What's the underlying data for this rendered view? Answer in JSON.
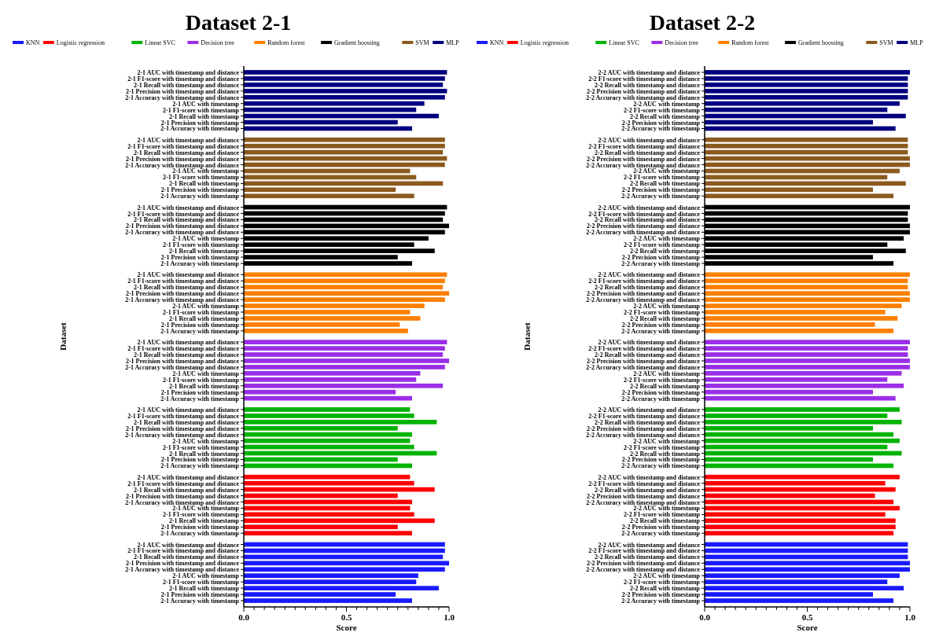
{
  "chart_data": [
    {
      "type": "bar",
      "orientation": "horizontal",
      "title": "Dataset 2-1",
      "xlabel": "Score",
      "ylabel": "Dataset",
      "legend": "top",
      "grid": false,
      "xlim": [
        0,
        1
      ],
      "xticks": [
        {
          "value": 0,
          "label": "0.0"
        },
        {
          "value": 0.05,
          "label": null
        },
        {
          "value": 0.1,
          "label": null
        },
        {
          "value": 0.15,
          "label": null
        },
        {
          "value": 0.2,
          "label": null
        },
        {
          "value": 0.25,
          "label": null
        },
        {
          "value": 0.3,
          "label": null
        },
        {
          "value": 0.35,
          "label": null
        },
        {
          "value": 0.4,
          "label": null
        },
        {
          "value": 0.45,
          "label": null
        },
        {
          "value": 0.5,
          "label": "0.5"
        },
        {
          "value": 0.55,
          "label": null
        },
        {
          "value": 0.6,
          "label": null
        },
        {
          "value": 0.65,
          "label": null
        },
        {
          "value": 0.7,
          "label": null
        },
        {
          "value": 0.75,
          "label": null
        },
        {
          "value": 0.8,
          "label": null
        },
        {
          "value": 0.85,
          "label": null
        },
        {
          "value": 0.9,
          "label": null
        },
        {
          "value": 0.95,
          "label": null
        },
        {
          "value": 1,
          "label": "1.0"
        }
      ],
      "categories": [
        "2-1 AUC with timestamp and distance",
        "2-1 F1-score with timestamp and distance",
        "2-1 Recall with timestamp and distance",
        "2-1 Precision with timestamp and distance",
        "2-1 Accuracy with timestamp and distance",
        "2-1 AUC with timestamp",
        "2-1 F1-score with timestamp",
        "2-1 Recall with timestamp",
        "2-1 Precision with timestamp",
        "2-1 Accuracy with timestamp",
        "2-1 AUC with timestamp and distance",
        "2-1 F1-score with timestamp and distance",
        "2-1 Recall with timestamp and distance",
        "2-1 Precision with timestamp and distance",
        "2-1 Accuracy with timestamp and distance",
        "2-1 AUC with timestamp",
        "2-1 F1-score with timestamp",
        "2-1 Recall with timestamp",
        "2-1 Precision with timestamp",
        "2-1 Accuracy with timestamp",
        "2-1 AUC with timestamp and distance",
        "2-1 F1-score with timestamp and distance",
        "2-1 Recall with timestamp and distance",
        "2-1 Precision with timestamp and distance",
        "2-1 Accuracy with timestamp and distance",
        "2-1 AUC with timestamp",
        "2-1 F1-score with timestamp",
        "2-1 Recall with timestamp",
        "2-1 Precision with timestamp",
        "2-1 Accuracy with timestamp",
        "2-1 AUC with timestamp and distance",
        "2-1 F1-score with timestamp and distance",
        "2-1 Recall with timestamp and distance",
        "2-1 Precision with timestamp and distance",
        "2-1 Accuracy with timestamp and distance",
        "2-1 AUC with timestamp",
        "2-1 F1-score with timestamp",
        "2-1 Recall with timestamp",
        "2-1 Precision with timestamp",
        "2-1 Accuracy with timestamp",
        "2-1 AUC with timestamp and distance",
        "2-1 F1-score with timestamp and distance",
        "2-1 Recall with timestamp and distance",
        "2-1 Precision with timestamp and distance",
        "2-1 Accuracy with timestamp and distance",
        "2-1 AUC with timestamp",
        "2-1 F1-score with timestamp",
        "2-1 Recall with timestamp",
        "2-1 Precision with timestamp",
        "2-1 Accuracy with timestamp",
        "2-1 AUC with timestamp and distance",
        "2-1 F1-score with timestamp and distance",
        "2-1 Recall with timestamp and distance",
        "2-1 Precision with timestamp and distance",
        "2-1 Accuracy with timestamp and distance",
        "2-1 AUC with timestamp",
        "2-1 F1-score with timestamp",
        "2-1 Recall with timestamp",
        "2-1 Precision with timestamp",
        "2-1 Accuracy with timestamp",
        "2-1 AUC with timestamp and distance",
        "2-1 F1-score with timestamp and distance",
        "2-1 Recall with timestamp and distance",
        "2-1 Precision with timestamp and distance",
        "2-1 Accuracy with timestamp and distance",
        "2-1 AUC with timestamp",
        "2-1 F1-score with timestamp",
        "2-1 Recall with timestamp",
        "2-1 Precision with timestamp",
        "2-1 Accuracy with timestamp",
        "2-1 AUC with timestamp and distance",
        "2-1 F1-score with timestamp and distance",
        "2-1 Recall with timestamp and distance",
        "2-1 Precision with timestamp and distance",
        "2-1 Accuracy with timestamp and distance",
        "2-1 AUC with timestamp",
        "2-1 F1-score with timestamp",
        "2-1 Recall with timestamp",
        "2-1 Precision with timestamp",
        "2-1 Accuracy with timestamp"
      ],
      "series": [
        {
          "name": "KNN",
          "color": "#1a1aff",
          "values": [
            null,
            null,
            null,
            null,
            null,
            null,
            null,
            null,
            null,
            null,
            null,
            null,
            null,
            null,
            null,
            null,
            null,
            null,
            null,
            null,
            null,
            null,
            null,
            null,
            null,
            null,
            null,
            null,
            null,
            null,
            null,
            null,
            null,
            null,
            null,
            null,
            null,
            null,
            null,
            null,
            null,
            null,
            null,
            null,
            null,
            null,
            null,
            null,
            null,
            null,
            null,
            null,
            null,
            null,
            null,
            null,
            null,
            null,
            null,
            null,
            null,
            null,
            null,
            null,
            null,
            null,
            null,
            null,
            null,
            null,
            0.98,
            0.98,
            0.97,
            1.0,
            0.98,
            0.85,
            0.84,
            0.95,
            0.74,
            0.82
          ]
        },
        {
          "name": "Logistic regression",
          "color": "#ff0000",
          "values": [
            null,
            null,
            null,
            null,
            null,
            null,
            null,
            null,
            null,
            null,
            null,
            null,
            null,
            null,
            null,
            null,
            null,
            null,
            null,
            null,
            null,
            null,
            null,
            null,
            null,
            null,
            null,
            null,
            null,
            null,
            null,
            null,
            null,
            null,
            null,
            null,
            null,
            null,
            null,
            null,
            null,
            null,
            null,
            null,
            null,
            null,
            null,
            null,
            null,
            null,
            null,
            null,
            null,
            null,
            null,
            null,
            null,
            null,
            null,
            null,
            0.81,
            0.83,
            0.93,
            0.75,
            0.82,
            0.81,
            0.83,
            0.93,
            0.75,
            0.82,
            null,
            null,
            null,
            null,
            null,
            null,
            null,
            null,
            null,
            null
          ]
        },
        {
          "name": "Linear SVC",
          "color": "#00b300",
          "values": [
            null,
            null,
            null,
            null,
            null,
            null,
            null,
            null,
            null,
            null,
            null,
            null,
            null,
            null,
            null,
            null,
            null,
            null,
            null,
            null,
            null,
            null,
            null,
            null,
            null,
            null,
            null,
            null,
            null,
            null,
            null,
            null,
            null,
            null,
            null,
            null,
            null,
            null,
            null,
            null,
            null,
            null,
            null,
            null,
            null,
            null,
            null,
            null,
            null,
            null,
            0.81,
            0.83,
            0.94,
            0.75,
            0.82,
            0.81,
            0.83,
            0.94,
            0.75,
            0.82,
            null,
            null,
            null,
            null,
            null,
            null,
            null,
            null,
            null,
            null,
            null,
            null,
            null,
            null,
            null,
            null,
            null,
            null,
            null,
            null
          ]
        },
        {
          "name": "Decision tree",
          "color": "#9a2ee6",
          "values": [
            null,
            null,
            null,
            null,
            null,
            null,
            null,
            null,
            null,
            null,
            null,
            null,
            null,
            null,
            null,
            null,
            null,
            null,
            null,
            null,
            null,
            null,
            null,
            null,
            null,
            null,
            null,
            null,
            null,
            null,
            null,
            null,
            null,
            null,
            null,
            null,
            null,
            null,
            null,
            null,
            0.99,
            0.98,
            0.97,
            1.0,
            0.98,
            0.86,
            0.84,
            0.97,
            0.74,
            0.82,
            null,
            null,
            null,
            null,
            null,
            null,
            null,
            null,
            null,
            null,
            null,
            null,
            null,
            null,
            null,
            null,
            null,
            null,
            null,
            null,
            null,
            null,
            null,
            null,
            null,
            null,
            null,
            null,
            null,
            null
          ]
        },
        {
          "name": "Random forest",
          "color": "#ff8000",
          "values": [
            null,
            null,
            null,
            null,
            null,
            null,
            null,
            null,
            null,
            null,
            null,
            null,
            null,
            null,
            null,
            null,
            null,
            null,
            null,
            null,
            null,
            null,
            null,
            null,
            null,
            null,
            null,
            null,
            null,
            null,
            0.99,
            0.98,
            0.97,
            1.0,
            0.98,
            0.88,
            0.81,
            0.86,
            0.76,
            0.8,
            null,
            null,
            null,
            null,
            null,
            null,
            null,
            null,
            null,
            null,
            null,
            null,
            null,
            null,
            null,
            null,
            null,
            null,
            null,
            null,
            null,
            null,
            null,
            null,
            null,
            null,
            null,
            null,
            null,
            null,
            null,
            null,
            null,
            null,
            null,
            null,
            null,
            null,
            null,
            null
          ]
        },
        {
          "name": "Gradient boosting",
          "color": "#000000",
          "values": [
            null,
            null,
            null,
            null,
            null,
            null,
            null,
            null,
            null,
            null,
            null,
            null,
            null,
            null,
            null,
            null,
            null,
            null,
            null,
            null,
            0.99,
            0.98,
            0.97,
            1.0,
            0.98,
            0.9,
            0.83,
            0.93,
            0.75,
            0.82,
            null,
            null,
            null,
            null,
            null,
            null,
            null,
            null,
            null,
            null,
            null,
            null,
            null,
            null,
            null,
            null,
            null,
            null,
            null,
            null,
            null,
            null,
            null,
            null,
            null,
            null,
            null,
            null,
            null,
            null,
            null,
            null,
            null,
            null,
            null,
            null,
            null,
            null,
            null,
            null,
            null,
            null,
            null,
            null,
            null,
            null,
            null,
            null,
            null,
            null
          ]
        },
        {
          "name": "SVM",
          "color": "#8c5a1e",
          "values": [
            null,
            null,
            null,
            null,
            null,
            null,
            null,
            null,
            null,
            null,
            0.98,
            0.98,
            0.97,
            0.99,
            0.98,
            0.81,
            0.84,
            0.97,
            0.74,
            0.83,
            null,
            null,
            null,
            null,
            null,
            null,
            null,
            null,
            null,
            null,
            null,
            null,
            null,
            null,
            null,
            null,
            null,
            null,
            null,
            null,
            null,
            null,
            null,
            null,
            null,
            null,
            null,
            null,
            null,
            null,
            null,
            null,
            null,
            null,
            null,
            null,
            null,
            null,
            null,
            null,
            null,
            null,
            null,
            null,
            null,
            null,
            null,
            null,
            null,
            null,
            null,
            null,
            null,
            null,
            null,
            null,
            null,
            null,
            null,
            null
          ]
        },
        {
          "name": "MLP",
          "color": "#000080",
          "values": [
            0.99,
            0.98,
            0.97,
            0.99,
            0.98,
            0.88,
            0.84,
            0.95,
            0.75,
            0.82,
            null,
            null,
            null,
            null,
            null,
            null,
            null,
            null,
            null,
            null,
            null,
            null,
            null,
            null,
            null,
            null,
            null,
            null,
            null,
            null,
            null,
            null,
            null,
            null,
            null,
            null,
            null,
            null,
            null,
            null,
            null,
            null,
            null,
            null,
            null,
            null,
            null,
            null,
            null,
            null,
            null,
            null,
            null,
            null,
            null,
            null,
            null,
            null,
            null,
            null,
            null,
            null,
            null,
            null,
            null,
            null,
            null,
            null,
            null,
            null,
            null,
            null,
            null,
            null,
            null,
            null,
            null,
            null,
            null,
            null
          ]
        }
      ]
    },
    {
      "type": "bar",
      "orientation": "horizontal",
      "title": "Dataset 2-2",
      "xlabel": "Score",
      "ylabel": "Dataset",
      "legend": "top",
      "grid": false,
      "xlim": [
        0,
        1
      ],
      "xticks": [
        {
          "value": 0,
          "label": "0.0"
        },
        {
          "value": 0.05,
          "label": null
        },
        {
          "value": 0.1,
          "label": null
        },
        {
          "value": 0.15,
          "label": null
        },
        {
          "value": 0.2,
          "label": null
        },
        {
          "value": 0.25,
          "label": null
        },
        {
          "value": 0.3,
          "label": null
        },
        {
          "value": 0.35,
          "label": null
        },
        {
          "value": 0.4,
          "label": null
        },
        {
          "value": 0.45,
          "label": null
        },
        {
          "value": 0.5,
          "label": "0.5"
        },
        {
          "value": 0.55,
          "label": null
        },
        {
          "value": 0.6,
          "label": null
        },
        {
          "value": 0.65,
          "label": null
        },
        {
          "value": 0.7,
          "label": null
        },
        {
          "value": 0.75,
          "label": null
        },
        {
          "value": 0.8,
          "label": null
        },
        {
          "value": 0.85,
          "label": null
        },
        {
          "value": 0.9,
          "label": null
        },
        {
          "value": 0.95,
          "label": null
        },
        {
          "value": 1,
          "label": "1.0"
        }
      ],
      "categories": [
        "2-2 AUC with timestamp and distance",
        "2-2 F1-score with timestamp and distance",
        "2-2 Recall with timestamp and distance",
        "2-2 Precision with timestamp and distance",
        "2-2 Accuracy with timestamp and distance",
        "2-2 AUC with timestamp",
        "2-2 F1-score with timestamp",
        "2-2 Recall with timestamp",
        "2-2 Precision with timestamp",
        "2-2 Accuracy with timestamp",
        "2-2 AUC with timestamp and distance",
        "2-2 F1-score with timestamp and distance",
        "2-2 Recall with timestamp and distance",
        "2-2 Precision with timestamp and distance",
        "2-2 Accuracy with timestamp and distance",
        "2-2 AUC with timestamp",
        "2-2 F1-score with timestamp",
        "2-2 Recall with timestamp",
        "2-2 Precision with timestamp",
        "2-2 Accuracy with timestamp",
        "2-2 AUC with timestamp and distance",
        "2-2 F1-score with timestamp and distance",
        "2-2 Recall with timestamp and distance",
        "2-2 Precision with timestamp and distance",
        "2-2 Accuracy with timestamp and distance",
        "2-2 AUC with timestamp",
        "2-2 F1-score with timestamp",
        "2-2 Recall with timestamp",
        "2-2 Precision with timestamp",
        "2-2 Accuracy with timestamp",
        "2-2 AUC with timestamp and distance",
        "2-2 F1-score with timestamp and distance",
        "2-2 Recall with timestamp and distance",
        "2-2 Precision with timestamp and distance",
        "2-2 Accuracy with timestamp and distance",
        "2-2 AUC with timestamp",
        "2-2 F1-score with timestamp",
        "2-2 Recall with timestamp",
        "2-2 Precision with timestamp",
        "2-2 Accuracy with timestamp",
        "2-2 AUC with timestamp and distance",
        "2-2 F1-score with timestamp and distance",
        "2-2 Recall with timestamp and distance",
        "2-2 Precision with timestamp and distance",
        "2-2 Accuracy with timestamp and distance",
        "2-2 AUC with timestamp",
        "2-2 F1-score with timestamp",
        "2-2 Recall with timestamp",
        "2-2 Precision with timestamp",
        "2-2 Accuracy with timestamp",
        "2-2 AUC with timestamp and distance",
        "2-2 F1-score with timestamp and distance",
        "2-2 Recall with timestamp and distance",
        "2-2 Precision with timestamp and distance",
        "2-2 Accuracy with timestamp and distance",
        "2-2 AUC with timestamp",
        "2-2 F1-score with timestamp",
        "2-2 Recall with timestamp",
        "2-2 Precision with timestamp",
        "2-2 Accuracy with timestamp",
        "2-2 AUC with timestamp and distance",
        "2-2 F1-score with timestamp and distance",
        "2-2 Recall with timestamp and distance",
        "2-2 Precision with timestamp and distance",
        "2-2 Accuracy with timestamp and distance",
        "2-2 AUC with timestamp",
        "2-2 F1-score with timestamp",
        "2-2 Recall with timestamp",
        "2-2 Precision with timestamp",
        "2-2 Accuracy with timestamp",
        "2-2 AUC with timestamp and distance",
        "2-2 F1-score with timestamp and distance",
        "2-2 Recall with timestamp and distance",
        "2-2 Precision with timestamp and distance",
        "2-2 Accuracy with timestamp and distance",
        "2-2 AUC with timestamp",
        "2-2 F1-score with timestamp",
        "2-2 Recall with timestamp",
        "2-2 Precision with timestamp",
        "2-2 Accuracy with timestamp"
      ],
      "series": [
        {
          "name": "KNN",
          "color": "#1a1aff",
          "values": [
            null,
            null,
            null,
            null,
            null,
            null,
            null,
            null,
            null,
            null,
            null,
            null,
            null,
            null,
            null,
            null,
            null,
            null,
            null,
            null,
            null,
            null,
            null,
            null,
            null,
            null,
            null,
            null,
            null,
            null,
            null,
            null,
            null,
            null,
            null,
            null,
            null,
            null,
            null,
            null,
            null,
            null,
            null,
            null,
            null,
            null,
            null,
            null,
            null,
            null,
            null,
            null,
            null,
            null,
            null,
            null,
            null,
            null,
            null,
            null,
            null,
            null,
            null,
            null,
            null,
            null,
            null,
            null,
            null,
            null,
            0.99,
            0.99,
            0.99,
            1.0,
            1.0,
            0.95,
            0.89,
            0.97,
            0.82,
            0.92
          ]
        },
        {
          "name": "Logistic regression",
          "color": "#ff0000",
          "values": [
            null,
            null,
            null,
            null,
            null,
            null,
            null,
            null,
            null,
            null,
            null,
            null,
            null,
            null,
            null,
            null,
            null,
            null,
            null,
            null,
            null,
            null,
            null,
            null,
            null,
            null,
            null,
            null,
            null,
            null,
            null,
            null,
            null,
            null,
            null,
            null,
            null,
            null,
            null,
            null,
            null,
            null,
            null,
            null,
            null,
            null,
            null,
            null,
            null,
            null,
            null,
            null,
            null,
            null,
            null,
            null,
            null,
            null,
            null,
            null,
            0.95,
            0.88,
            0.93,
            0.83,
            0.92,
            0.95,
            0.88,
            0.93,
            0.93,
            0.92,
            null,
            null,
            null,
            null,
            null,
            null,
            null,
            null,
            null,
            null
          ]
        },
        {
          "name": "Linear SVC",
          "color": "#00b300",
          "values": [
            null,
            null,
            null,
            null,
            null,
            null,
            null,
            null,
            null,
            null,
            null,
            null,
            null,
            null,
            null,
            null,
            null,
            null,
            null,
            null,
            null,
            null,
            null,
            null,
            null,
            null,
            null,
            null,
            null,
            null,
            null,
            null,
            null,
            null,
            null,
            null,
            null,
            null,
            null,
            null,
            null,
            null,
            null,
            null,
            null,
            null,
            null,
            null,
            null,
            null,
            0.95,
            0.89,
            0.96,
            0.82,
            0.92,
            0.95,
            0.89,
            0.96,
            0.82,
            0.92,
            null,
            null,
            null,
            null,
            null,
            null,
            null,
            null,
            null,
            null,
            null,
            null,
            null,
            null,
            null,
            null,
            null,
            null,
            null,
            null
          ]
        },
        {
          "name": "Decision tree",
          "color": "#9a2ee6",
          "values": [
            null,
            null,
            null,
            null,
            null,
            null,
            null,
            null,
            null,
            null,
            null,
            null,
            null,
            null,
            null,
            null,
            null,
            null,
            null,
            null,
            null,
            null,
            null,
            null,
            null,
            null,
            null,
            null,
            null,
            null,
            null,
            null,
            null,
            null,
            null,
            null,
            null,
            null,
            null,
            null,
            1.0,
            0.99,
            0.99,
            1.0,
            1.0,
            0.96,
            0.89,
            0.97,
            0.82,
            0.93,
            null,
            null,
            null,
            null,
            null,
            null,
            null,
            null,
            null,
            null,
            null,
            null,
            null,
            null,
            null,
            null,
            null,
            null,
            null,
            null,
            null,
            null,
            null,
            null,
            null,
            null,
            null,
            null,
            null,
            null
          ]
        },
        {
          "name": "Random forest",
          "color": "#ff8000",
          "values": [
            null,
            null,
            null,
            null,
            null,
            null,
            null,
            null,
            null,
            null,
            null,
            null,
            null,
            null,
            null,
            null,
            null,
            null,
            null,
            null,
            null,
            null,
            null,
            null,
            null,
            null,
            null,
            null,
            null,
            null,
            1.0,
            0.99,
            0.99,
            1.0,
            1.0,
            0.96,
            0.88,
            0.94,
            0.83,
            0.92,
            null,
            null,
            null,
            null,
            null,
            null,
            null,
            null,
            null,
            null,
            null,
            null,
            null,
            null,
            null,
            null,
            null,
            null,
            null,
            null,
            null,
            null,
            null,
            null,
            null,
            null,
            null,
            null,
            null,
            null,
            null,
            null,
            null,
            null,
            null,
            null,
            null,
            null,
            null,
            null
          ]
        },
        {
          "name": "Gradient boosting",
          "color": "#000000",
          "values": [
            null,
            null,
            null,
            null,
            null,
            null,
            null,
            null,
            null,
            null,
            null,
            null,
            null,
            null,
            null,
            null,
            null,
            null,
            null,
            null,
            1.0,
            0.99,
            0.99,
            1.0,
            1.0,
            0.97,
            0.89,
            0.98,
            0.82,
            0.92,
            null,
            null,
            null,
            null,
            null,
            null,
            null,
            null,
            null,
            null,
            null,
            null,
            null,
            null,
            null,
            null,
            null,
            null,
            null,
            null,
            null,
            null,
            null,
            null,
            null,
            null,
            null,
            null,
            null,
            null,
            null,
            null,
            null,
            null,
            null,
            null,
            null,
            null,
            null,
            null,
            null,
            null,
            null,
            null,
            null,
            null,
            null,
            null,
            null,
            null
          ]
        },
        {
          "name": "SVM",
          "color": "#8c5a1e",
          "values": [
            null,
            null,
            null,
            null,
            null,
            null,
            null,
            null,
            null,
            null,
            0.99,
            0.99,
            0.99,
            1.0,
            1.0,
            0.95,
            0.89,
            0.98,
            0.82,
            0.92,
            null,
            null,
            null,
            null,
            null,
            null,
            null,
            null,
            null,
            null,
            null,
            null,
            null,
            null,
            null,
            null,
            null,
            null,
            null,
            null,
            null,
            null,
            null,
            null,
            null,
            null,
            null,
            null,
            null,
            null,
            null,
            null,
            null,
            null,
            null,
            null,
            null,
            null,
            null,
            null,
            null,
            null,
            null,
            null,
            null,
            null,
            null,
            null,
            null,
            null,
            null,
            null,
            null,
            null,
            null,
            null,
            null,
            null,
            null,
            null
          ]
        },
        {
          "name": "MLP",
          "color": "#000080",
          "values": [
            1.0,
            0.99,
            0.99,
            0.99,
            0.99,
            0.95,
            0.89,
            0.98,
            0.82,
            0.93,
            null,
            null,
            null,
            null,
            null,
            null,
            null,
            null,
            null,
            null,
            null,
            null,
            null,
            null,
            null,
            null,
            null,
            null,
            null,
            null,
            null,
            null,
            null,
            null,
            null,
            null,
            null,
            null,
            null,
            null,
            null,
            null,
            null,
            null,
            null,
            null,
            null,
            null,
            null,
            null,
            null,
            null,
            null,
            null,
            null,
            null,
            null,
            null,
            null,
            null,
            null,
            null,
            null,
            null,
            null,
            null,
            null,
            null,
            null,
            null,
            null,
            null,
            null,
            null,
            null,
            null,
            null,
            null,
            null,
            null
          ]
        }
      ]
    }
  ]
}
